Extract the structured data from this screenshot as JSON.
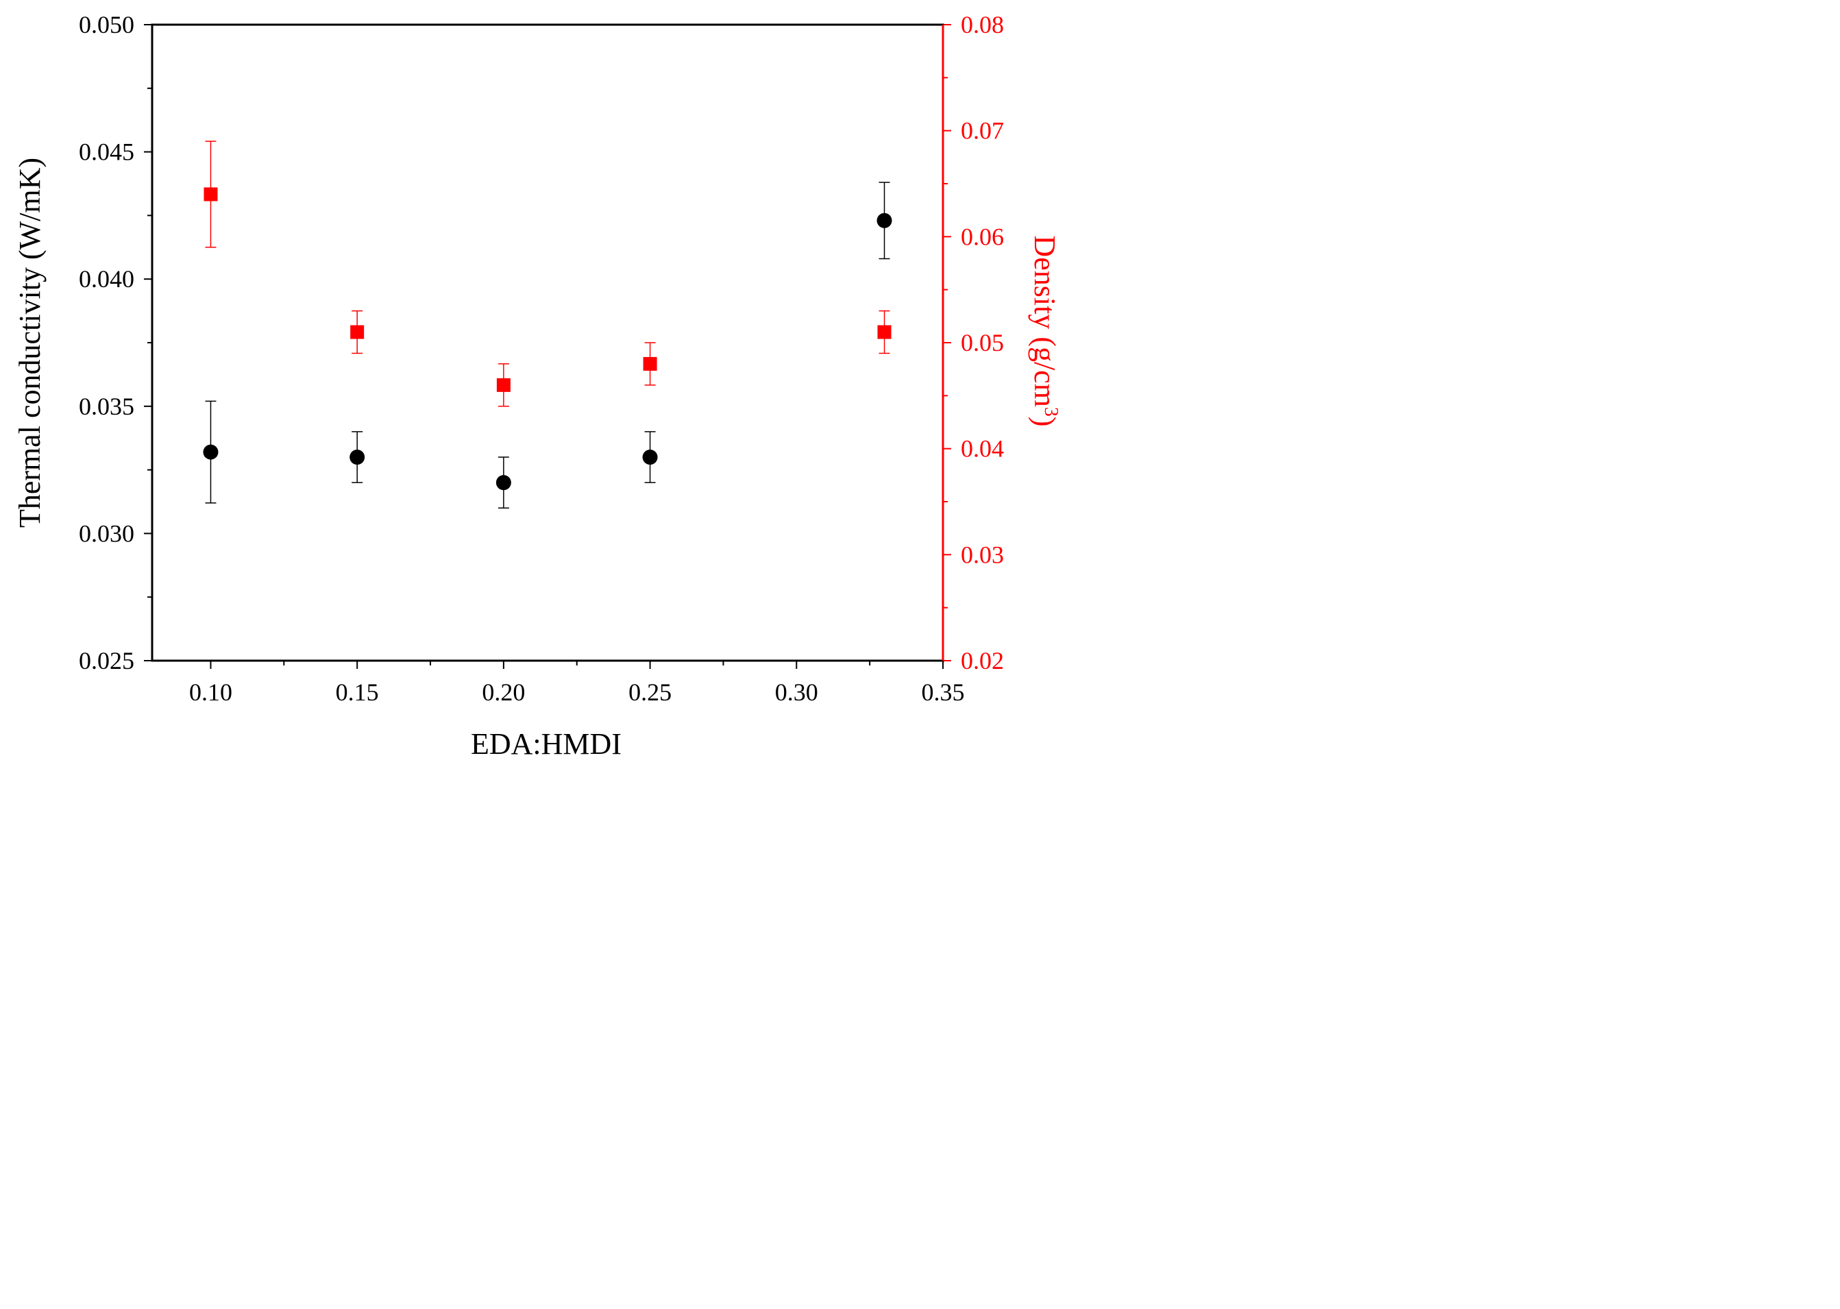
{
  "chart_data": {
    "type": "scatter",
    "xlabel": "EDA:HMDI",
    "ylabel": "Thermal conductivity (W/mK)",
    "y2label": "Density (g/cm",
    "y2label_sup": "3",
    "y2label_close": ")",
    "xlim": [
      0.08,
      0.35
    ],
    "ylim": [
      0.025,
      0.05
    ],
    "y2lim": [
      0.02,
      0.08
    ],
    "x_ticks": [
      "0.10",
      "0.15",
      "0.20",
      "0.25",
      "0.30",
      "0.35"
    ],
    "y_ticks": [
      "0.025",
      "0.030",
      "0.035",
      "0.040",
      "0.045",
      "0.050"
    ],
    "y2_ticks": [
      "0.02",
      "0.03",
      "0.04",
      "0.05",
      "0.06",
      "0.07",
      "0.08"
    ],
    "colors": {
      "conductivity": "#000000",
      "density": "#ff0000"
    },
    "series": [
      {
        "axis": "left",
        "marker": "circle",
        "points": [
          {
            "x": 0.1,
            "y": 0.0332,
            "lo": 0.0312,
            "hi": 0.0352
          },
          {
            "x": 0.15,
            "y": 0.033,
            "lo": 0.032,
            "hi": 0.034
          },
          {
            "x": 0.2,
            "y": 0.032,
            "lo": 0.031,
            "hi": 0.033
          },
          {
            "x": 0.25,
            "y": 0.033,
            "lo": 0.032,
            "hi": 0.034
          },
          {
            "x": 0.33,
            "y": 0.0423,
            "lo": 0.0408,
            "hi": 0.0438
          }
        ]
      },
      {
        "axis": "right",
        "marker": "square",
        "points": [
          {
            "x": 0.1,
            "y": 0.064,
            "lo": 0.059,
            "hi": 0.069
          },
          {
            "x": 0.15,
            "y": 0.051,
            "lo": 0.049,
            "hi": 0.053
          },
          {
            "x": 0.2,
            "y": 0.046,
            "lo": 0.044,
            "hi": 0.048
          },
          {
            "x": 0.25,
            "y": 0.048,
            "lo": 0.046,
            "hi": 0.05
          },
          {
            "x": 0.33,
            "y": 0.051,
            "lo": 0.049,
            "hi": 0.053
          }
        ]
      }
    ]
  }
}
